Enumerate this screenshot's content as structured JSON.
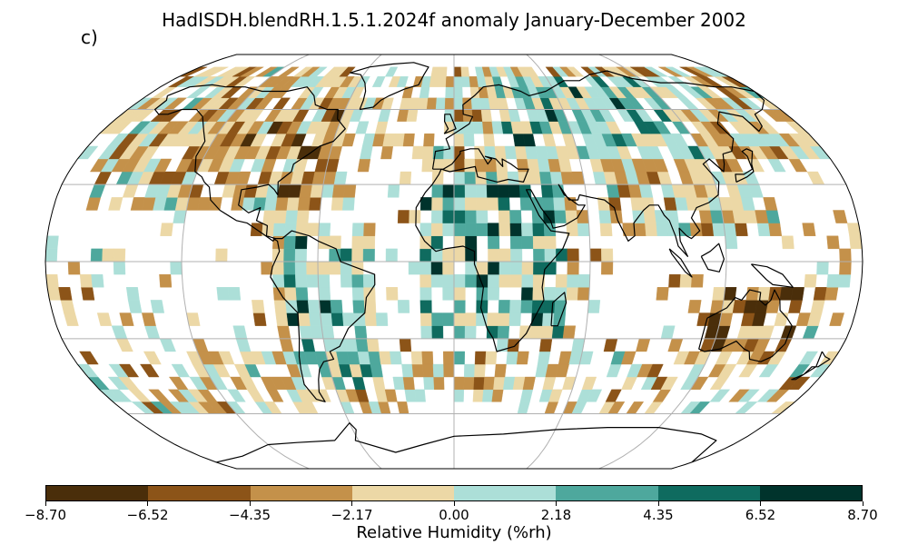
{
  "title": "HadISDH.blendRH.1.5.1.2024f anomaly January-December 2002",
  "panel_label": "c)",
  "colorbar": {
    "label": "Relative Humidity (%rh)",
    "ticks": [
      "−8.70",
      "−6.52",
      "−4.35",
      "−2.17",
      "0.00",
      "2.18",
      "4.35",
      "6.52",
      "8.70"
    ],
    "colors": [
      "#4a2e0a",
      "#8c5418",
      "#c4914a",
      "#ecd8a6",
      "#acdfd8",
      "#4ea89d",
      "#0f6b5f",
      "#00332c"
    ]
  },
  "map": {
    "projection": "Robinson",
    "gridlines": true,
    "land_outline_color": "#000000",
    "gridline_color": "#b0b0b0"
  }
}
